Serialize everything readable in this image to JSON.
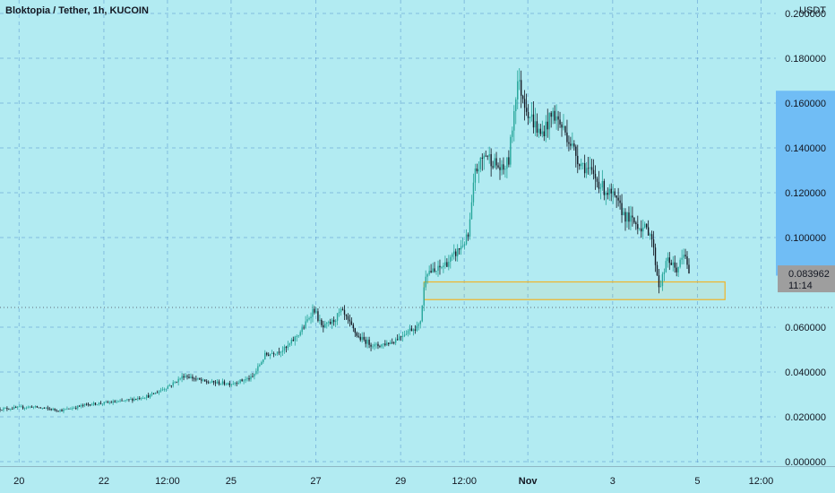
{
  "header": {
    "title": "Bloktopia / Tether, 1h, KUCOIN"
  },
  "colors": {
    "background": "#b2ebf2",
    "up": "#26a69a",
    "down": "#131722",
    "grid": "#4a86c8",
    "highlight": "#64b5f6",
    "zone": "#f0b429",
    "price_label": "#9e9e9e"
  },
  "chart_data": {
    "type": "candlestick",
    "title": "Bloktopia / Tether, 1h, KUCOIN",
    "currency": "USDT",
    "ylim": [
      -0.002,
      0.206
    ],
    "y_ticks": [
      "0.200000",
      "0.180000",
      "0.160000",
      "0.140000",
      "0.120000",
      "0.100000",
      "0.060000",
      "0.040000",
      "0.020000",
      "0.000000"
    ],
    "y_tick_values": [
      0.2,
      0.18,
      0.16,
      0.14,
      0.12,
      0.1,
      0.06,
      0.04,
      0.02,
      0.0
    ],
    "x_ticks": [
      {
        "label": "20",
        "day": 0,
        "bold": false
      },
      {
        "label": "22",
        "day": 2,
        "bold": false
      },
      {
        "label": "12:00",
        "day": 3.5,
        "bold": false
      },
      {
        "label": "25",
        "day": 5,
        "bold": false
      },
      {
        "label": "27",
        "day": 7,
        "bold": false
      },
      {
        "label": "29",
        "day": 9,
        "bold": false
      },
      {
        "label": "12:00",
        "day": 10.5,
        "bold": false
      },
      {
        "label": "Nov",
        "day": 12,
        "bold": true
      },
      {
        "label": "3",
        "day": 14,
        "bold": false
      },
      {
        "label": "5",
        "day": 16,
        "bold": false
      },
      {
        "label": "12:00",
        "day": 17.5,
        "bold": false
      }
    ],
    "xlim_days": [
      -0.45,
      17.85
    ],
    "last_candle_day": 15.83,
    "current_price": "0.083962",
    "countdown": "11:14",
    "current_price_value": 0.083962,
    "horizontal_line_value": 0.0688,
    "highlight_range": [
      0.083,
      0.1655
    ],
    "zone": {
      "y_low": 0.0723,
      "y_high": 0.0802,
      "day_start": 9.55,
      "day_end": 16.65
    },
    "series_path": [
      {
        "day": -0.45,
        "v": 0.0235
      },
      {
        "day": 0.3,
        "v": 0.0245
      },
      {
        "day": 1.0,
        "v": 0.0228
      },
      {
        "day": 1.6,
        "v": 0.0255
      },
      {
        "day": 2.4,
        "v": 0.0268
      },
      {
        "day": 3.1,
        "v": 0.0295
      },
      {
        "day": 3.6,
        "v": 0.0345
      },
      {
        "day": 3.9,
        "v": 0.0385
      },
      {
        "day": 4.4,
        "v": 0.0355
      },
      {
        "day": 5.0,
        "v": 0.0348
      },
      {
        "day": 5.5,
        "v": 0.0375
      },
      {
        "day": 5.8,
        "v": 0.0475
      },
      {
        "day": 6.3,
        "v": 0.0505
      },
      {
        "day": 6.7,
        "v": 0.0595
      },
      {
        "day": 6.95,
        "v": 0.0685
      },
      {
        "day": 7.15,
        "v": 0.0595
      },
      {
        "day": 7.4,
        "v": 0.0625
      },
      {
        "day": 7.6,
        "v": 0.0672
      },
      {
        "day": 8.0,
        "v": 0.0555
      },
      {
        "day": 8.4,
        "v": 0.0515
      },
      {
        "day": 8.8,
        "v": 0.0535
      },
      {
        "day": 9.2,
        "v": 0.0588
      },
      {
        "day": 9.45,
        "v": 0.0605
      },
      {
        "day": 9.6,
        "v": 0.0855
      },
      {
        "day": 9.8,
        "v": 0.0845
      },
      {
        "day": 10.2,
        "v": 0.0905
      },
      {
        "day": 10.6,
        "v": 0.1005
      },
      {
        "day": 10.75,
        "v": 0.1285
      },
      {
        "day": 11.0,
        "v": 0.1375
      },
      {
        "day": 11.4,
        "v": 0.1295
      },
      {
        "day": 11.55,
        "v": 0.1345
      },
      {
        "day": 11.75,
        "v": 0.1705
      },
      {
        "day": 12.0,
        "v": 0.1565
      },
      {
        "day": 12.3,
        "v": 0.1455
      },
      {
        "day": 12.6,
        "v": 0.1555
      },
      {
        "day": 12.9,
        "v": 0.1465
      },
      {
        "day": 13.2,
        "v": 0.1345
      },
      {
        "day": 13.5,
        "v": 0.1285
      },
      {
        "day": 13.8,
        "v": 0.1215
      },
      {
        "day": 14.0,
        "v": 0.1185
      },
      {
        "day": 14.3,
        "v": 0.1095
      },
      {
        "day": 14.6,
        "v": 0.1055
      },
      {
        "day": 14.9,
        "v": 0.1025
      },
      {
        "day": 15.1,
        "v": 0.0775
      },
      {
        "day": 15.3,
        "v": 0.0905
      },
      {
        "day": 15.5,
        "v": 0.0855
      },
      {
        "day": 15.7,
        "v": 0.0925
      },
      {
        "day": 15.83,
        "v": 0.0835
      }
    ]
  }
}
